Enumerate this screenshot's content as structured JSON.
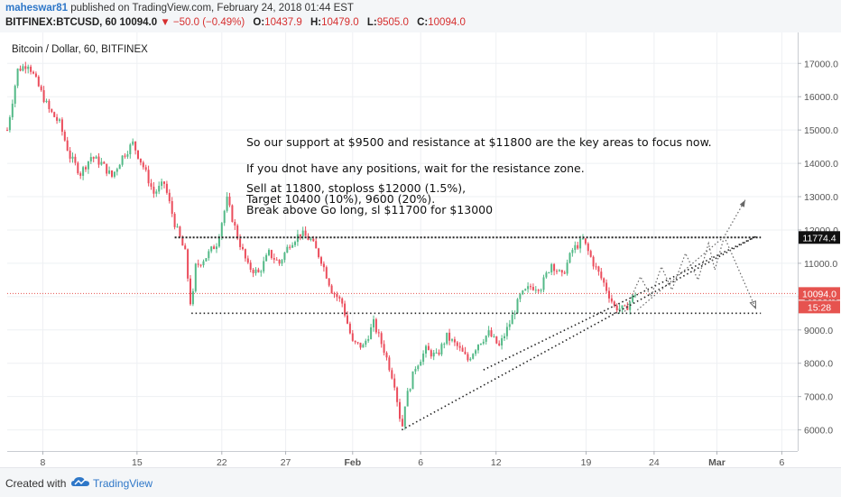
{
  "header": {
    "username": "maheswar81",
    "published_text": "published on TradingView.com, February 24, 2018 01:44 EST",
    "symbol": "BITFINEX:BTCUSD, 60",
    "last_price": "10094.0",
    "change": "−50.0 (−0.49%)",
    "open_label": "O:",
    "open": "10437.9",
    "high_label": "H:",
    "high": "10479.0",
    "low_label": "L:",
    "low": "9505.0",
    "close_label": "C:",
    "close": "10094.0"
  },
  "footer": {
    "created_with": "Created with",
    "brand": "TradingView"
  },
  "colors": {
    "up": "#53b987",
    "down": "#eb4d5c",
    "price_line": "#e6534f",
    "brand": "#2e77c8"
  },
  "chart_data": {
    "type": "candlestick",
    "title": "Bitcoin / Dollar, 60, BITFINEX",
    "x_ticks": [
      "8",
      "15",
      "22",
      "27",
      "Feb",
      "6",
      "12",
      "19",
      "24",
      "Mar",
      "6"
    ],
    "y_ticks": [
      "6000.0",
      "7000.0",
      "8000.0",
      "9000.0",
      "10000.0",
      "11000.0",
      "12000.0",
      "13000.0",
      "14000.0",
      "15000.0",
      "16000.0",
      "17000.0"
    ],
    "ylim": [
      5500,
      17800
    ],
    "price_labels": {
      "resistance": "11774.4",
      "last": "10094.0",
      "countdown": "15:28"
    },
    "resistance_level": 11774.4,
    "support_level": 9500,
    "last_price": 10094.0,
    "price_path": [
      [
        0,
        15000
      ],
      [
        1,
        16800
      ],
      [
        2,
        17000
      ],
      [
        3,
        16300
      ],
      [
        4,
        15600
      ],
      [
        5,
        15200
      ],
      [
        6,
        14200
      ],
      [
        7,
        13700
      ],
      [
        8,
        14200
      ],
      [
        9,
        14000
      ],
      [
        10,
        13600
      ],
      [
        11,
        14200
      ],
      [
        12,
        14600
      ],
      [
        13,
        13900
      ],
      [
        14,
        13100
      ],
      [
        15,
        13400
      ],
      [
        16,
        12200
      ],
      [
        17,
        11300
      ],
      [
        17.6,
        9550
      ],
      [
        18,
        10900
      ],
      [
        19,
        11200
      ],
      [
        20,
        11600
      ],
      [
        21,
        12900
      ],
      [
        22,
        11800
      ],
      [
        23,
        10900
      ],
      [
        24,
        10700
      ],
      [
        25,
        11300
      ],
      [
        26,
        11000
      ],
      [
        27,
        11600
      ],
      [
        28,
        11900
      ],
      [
        29,
        11700
      ],
      [
        30,
        11100
      ],
      [
        31,
        10200
      ],
      [
        32,
        9800
      ],
      [
        33,
        8600
      ],
      [
        34,
        8500
      ],
      [
        35,
        9200
      ],
      [
        36,
        8400
      ],
      [
        37,
        7400
      ],
      [
        37.7,
        6000
      ],
      [
        38,
        6800
      ],
      [
        39,
        7900
      ],
      [
        40,
        8400
      ],
      [
        41,
        8200
      ],
      [
        42,
        8800
      ],
      [
        43,
        8500
      ],
      [
        44,
        8100
      ],
      [
        45,
        8600
      ],
      [
        46,
        8900
      ],
      [
        47,
        8500
      ],
      [
        48,
        9200
      ],
      [
        49,
        10000
      ],
      [
        50,
        10300
      ],
      [
        51,
        10300
      ],
      [
        52,
        11000
      ],
      [
        53,
        10600
      ],
      [
        54,
        11400
      ],
      [
        55,
        11700
      ],
      [
        56,
        11000
      ],
      [
        57,
        10400
      ],
      [
        58,
        9700
      ],
      [
        59,
        9600
      ],
      [
        60,
        10094
      ]
    ],
    "annotations": [
      "So our support at $9500 and resistance at $11800 are the key areas to focus now.",
      "If you dnot have any positions, wait for the resistance zone.",
      "Sell at 11800, stoploss $12000 (1.5%),",
      "Target 10400 (10%), 9600 (20%).",
      "Break above  Go long, sl $11700 for $13000"
    ],
    "drawings": {
      "resistance_line": {
        "from_day": 16,
        "to_day": 72,
        "value": 11774.4
      },
      "support_line": {
        "from_day": 17.6,
        "to_day": 72,
        "value": 9500
      },
      "channel_lower": {
        "from": [
          37.7,
          6000
        ],
        "to": [
          71.5,
          11800
        ]
      },
      "channel_upper": {
        "from": [
          45.5,
          7800
        ],
        "to": [
          71.5,
          11800
        ]
      },
      "scenario_up": [
        [
          60.2,
          9600
        ],
        [
          68.5,
          11800
        ],
        [
          70.5,
          12900
        ]
      ],
      "scenario_down": [
        [
          68.5,
          11800
        ],
        [
          71.5,
          9650
        ]
      ],
      "zigzag": [
        [
          59,
          9550
        ],
        [
          60.5,
          10600
        ],
        [
          61.5,
          10000
        ],
        [
          62.5,
          10900
        ],
        [
          63.5,
          10200
        ],
        [
          64.8,
          11300
        ],
        [
          66,
          10500
        ],
        [
          67,
          11600
        ],
        [
          67.6,
          10800
        ],
        [
          68.5,
          11800
        ]
      ]
    }
  }
}
